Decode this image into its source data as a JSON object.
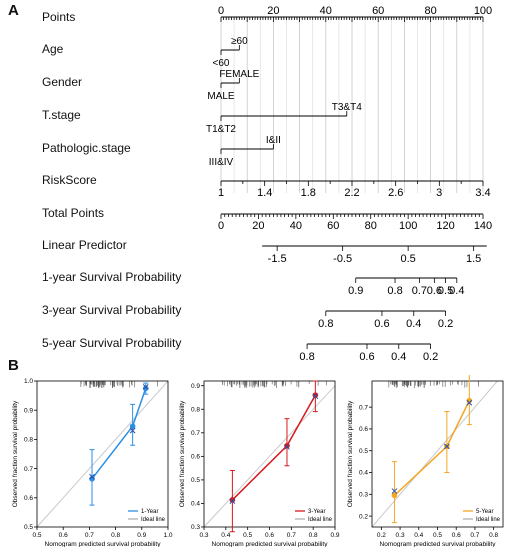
{
  "panels": {
    "a": "A",
    "b": "B"
  },
  "chart_data": [
    {
      "type": "nomogram",
      "rows": [
        {
          "label": "Points",
          "kind": "points_axis",
          "range": [
            0,
            100
          ],
          "major": [
            0,
            20,
            40,
            60,
            80,
            100
          ],
          "ticks": [
            "0",
            "20",
            "40",
            "60",
            "80",
            "100"
          ]
        },
        {
          "label": "Age",
          "kind": "categorical",
          "levels": [
            {
              "text": "≥60",
              "points": 7
            },
            {
              "text": "<60",
              "points": 0
            }
          ]
        },
        {
          "label": "Gender",
          "kind": "categorical",
          "levels": [
            {
              "text": "FEMALE",
              "points": 7
            },
            {
              "text": "MALE",
              "points": 0
            }
          ]
        },
        {
          "label": "T.stage",
          "kind": "categorical",
          "levels": [
            {
              "text": "T3&T4",
              "points": 48
            },
            {
              "text": "T1&T2",
              "points": 0
            }
          ]
        },
        {
          "label": "Pathologic.stage",
          "kind": "categorical",
          "levels": [
            {
              "text": "I&II",
              "points": 20
            },
            {
              "text": "III&IV",
              "points": 0
            }
          ]
        },
        {
          "label": "RiskScore",
          "kind": "continuous",
          "ticks": [
            "1",
            "1.4",
            "1.8",
            "2.2",
            "2.6",
            "3",
            "3.4"
          ],
          "tick_points": [
            0,
            16.7,
            33.3,
            50,
            66.7,
            83.3,
            100
          ]
        },
        {
          "label": "Total Points",
          "kind": "points_axis",
          "range": [
            0,
            140
          ],
          "major": [
            0,
            20,
            40,
            60,
            80,
            100,
            120,
            140
          ],
          "ticks": [
            "0",
            "20",
            "40",
            "60",
            "80",
            "100",
            "120",
            "140"
          ]
        },
        {
          "label": "Linear Predictor",
          "kind": "mapped",
          "ticks": [
            "-1.5",
            "-0.5",
            "0.5",
            "1.5"
          ],
          "tick_total_points": [
            30,
            65,
            100,
            135
          ],
          "span_total_points": [
            22,
            142
          ]
        },
        {
          "label": "1-year Survival Probability",
          "kind": "mapped",
          "ticks": [
            "0.9",
            "0.8",
            "0.7",
            "0.6",
            "0.5",
            "0.4"
          ],
          "tick_total_points": [
            72,
            93,
            106,
            114,
            120,
            126
          ],
          "span_total_points": [
            72,
            126
          ]
        },
        {
          "label": "3-year Survival Probability",
          "kind": "mapped",
          "ticks": [
            "0.8",
            "0.6",
            "0.4",
            "0.2"
          ],
          "tick_total_points": [
            56,
            86,
            103,
            120
          ],
          "span_total_points": [
            56,
            120
          ]
        },
        {
          "label": "5-year Survival Probability",
          "kind": "mapped",
          "ticks": [
            "0.8",
            "0.6",
            "0.4",
            "0.2"
          ],
          "tick_total_points": [
            46,
            78,
            95,
            112
          ],
          "span_total_points": [
            46,
            112
          ]
        }
      ]
    },
    {
      "type": "calibration",
      "xlabel": "Nomogram predicted survival probability",
      "ylabel": "Observed fraction survival probability",
      "xlim": [
        0.5,
        1.0
      ],
      "ylim": [
        0.5,
        1.0
      ],
      "xticks": [
        "0.5",
        "0.6",
        "0.7",
        "0.8",
        "0.9",
        "1.0"
      ],
      "yticks": [
        "0.5",
        "0.6",
        "0.7",
        "0.8",
        "0.9",
        "1.0"
      ],
      "color": "#2b8fe6",
      "series": [
        {
          "name": "1-Year",
          "points": [
            {
              "x": 0.71,
              "y": 0.665,
              "lo": 0.575,
              "hi": 0.765
            },
            {
              "x": 0.865,
              "y": 0.845,
              "lo": 0.78,
              "hi": 0.92
            },
            {
              "x": 0.915,
              "y": 0.975,
              "lo": 0.955,
              "hi": 0.993
            }
          ],
          "crosses": [
            {
              "x": 0.71,
              "y": 0.672
            },
            {
              "x": 0.865,
              "y": 0.83
            },
            {
              "x": 0.915,
              "y": 0.98
            }
          ]
        }
      ],
      "legend": [
        "1-Year",
        "Ideal line"
      ]
    },
    {
      "type": "calibration",
      "xlabel": "Nomogram predicted survival probability",
      "ylabel": "Observed fraction survival probability",
      "xlim": [
        0.3,
        0.9
      ],
      "ylim": [
        0.3,
        0.92
      ],
      "xticks": [
        "0.3",
        "0.4",
        "0.5",
        "0.6",
        "0.7",
        "0.8",
        "0.9"
      ],
      "yticks": [
        "0.3",
        "0.4",
        "0.5",
        "0.6",
        "0.7",
        "0.8",
        "0.9"
      ],
      "color": "#d7191c",
      "series": [
        {
          "name": "3-Year",
          "points": [
            {
              "x": 0.43,
              "y": 0.415,
              "lo": 0.28,
              "hi": 0.54
            },
            {
              "x": 0.68,
              "y": 0.645,
              "lo": 0.56,
              "hi": 0.76
            },
            {
              "x": 0.81,
              "y": 0.86,
              "lo": 0.79,
              "hi": 0.92
            }
          ],
          "crosses": [
            {
              "x": 0.43,
              "y": 0.41
            },
            {
              "x": 0.68,
              "y": 0.64
            },
            {
              "x": 0.81,
              "y": 0.855
            }
          ]
        }
      ],
      "legend": [
        "3-Year",
        "Ideal line"
      ]
    },
    {
      "type": "calibration",
      "xlabel": "Nomogram predicted survival probability",
      "ylabel": "Observed fraction survival probability",
      "xlim": [
        0.15,
        0.85
      ],
      "ylim": [
        0.15,
        0.82
      ],
      "xticks": [
        "0.2",
        "0.3",
        "0.4",
        "0.5",
        "0.6",
        "0.7",
        "0.8"
      ],
      "yticks": [
        "0.2",
        "0.3",
        "0.4",
        "0.5",
        "0.6",
        "0.7"
      ],
      "color": "#f5a623",
      "series": [
        {
          "name": "5-Year",
          "points": [
            {
              "x": 0.27,
              "y": 0.295,
              "lo": 0.17,
              "hi": 0.45
            },
            {
              "x": 0.55,
              "y": 0.52,
              "lo": 0.4,
              "hi": 0.68
            },
            {
              "x": 0.67,
              "y": 0.73,
              "lo": 0.62,
              "hi": 0.86
            }
          ],
          "crosses": [
            {
              "x": 0.27,
              "y": 0.315
            },
            {
              "x": 0.55,
              "y": 0.52
            },
            {
              "x": 0.67,
              "y": 0.72
            }
          ]
        }
      ],
      "legend": [
        "5-Year",
        "Ideal line"
      ]
    }
  ]
}
